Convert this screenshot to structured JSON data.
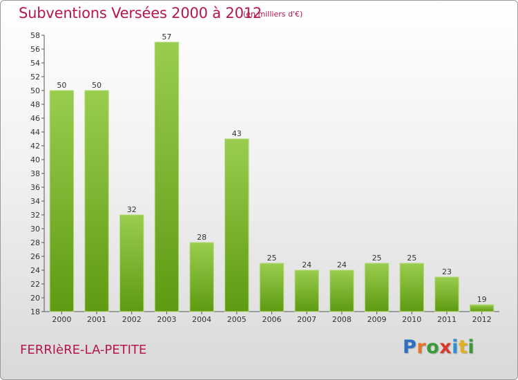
{
  "header": {
    "title": "Subventions Versées 2000 à 2012",
    "unit_note": "(en milliers d'€)"
  },
  "footer": {
    "commune": "FERRIèRE-LA-PETITE",
    "logo": [
      "P",
      "r",
      "o",
      "x",
      "i",
      "t",
      "i"
    ]
  },
  "colors": {
    "title": "#b5164f",
    "bar_top": "#9acd4e",
    "bar_bottom": "#5e9a12",
    "logo": [
      "#2e6fc4",
      "#e8742a",
      "#3a9a3a",
      "#d93a2a",
      "#2e8fd4",
      "#e0b020",
      "#3a9a3a"
    ]
  },
  "chart_data": {
    "type": "bar",
    "categories": [
      "2000",
      "2001",
      "2002",
      "2003",
      "2004",
      "2005",
      "2006",
      "2007",
      "2008",
      "2009",
      "2010",
      "2011",
      "2012"
    ],
    "values": [
      50,
      50,
      32,
      57,
      28,
      43,
      25,
      24,
      24,
      25,
      25,
      23,
      19
    ],
    "ylim": [
      18,
      58
    ],
    "ytick_step": 2,
    "grid": false,
    "data_labels": true
  }
}
